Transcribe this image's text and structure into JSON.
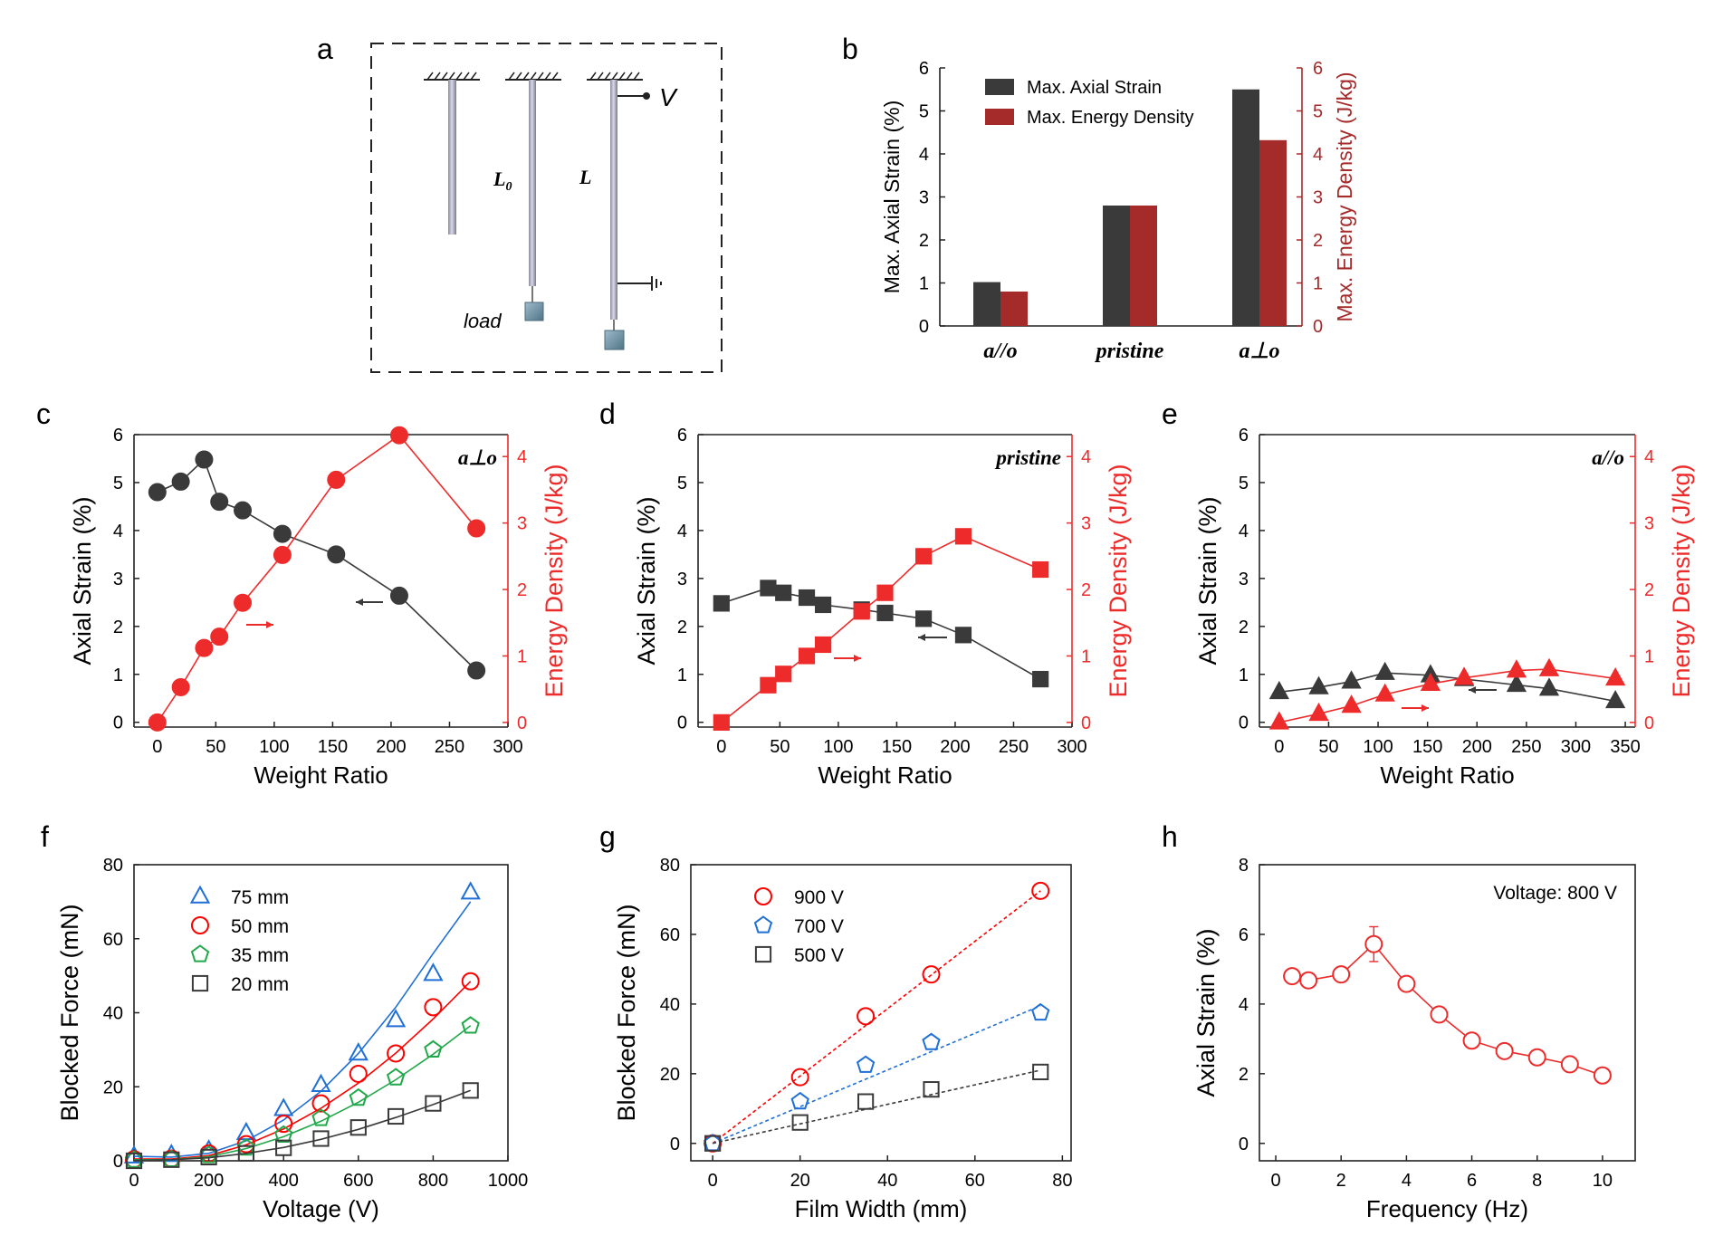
{
  "panel_letters": {
    "a": "a",
    "b": "b",
    "c": "c",
    "d": "d",
    "e": "e",
    "f": "f",
    "g": "g",
    "h": "h"
  },
  "schematic": {
    "label_L0_main": "L",
    "label_L0_sub": "0",
    "label_L": "L",
    "label_V": "V",
    "label_load": "load"
  },
  "colors": {
    "black_series": "#3a3a3a",
    "red_series": "#ee2b2b",
    "dark_red_bar": "#a52a2a",
    "blue": "#1f6fd6",
    "green": "#21a84a"
  },
  "chart_data": [
    {
      "id": "b",
      "type": "bar",
      "categories": [
        "a//o",
        "pristine",
        "a⊥o"
      ],
      "series": [
        {
          "name": "Max. Axial Strain",
          "values": [
            1.02,
            2.8,
            5.5
          ]
        },
        {
          "name": "Max. Energy Density",
          "values": [
            0.8,
            2.8,
            4.32
          ]
        }
      ],
      "ylabel": "Max. Axial Strain (%)",
      "ylabel_right": "Max. Energy Density (J/kg)",
      "ylim": [
        0,
        6
      ],
      "ylim_right": [
        0,
        6
      ],
      "yticks": [
        "0",
        "1",
        "2",
        "3",
        "4",
        "5",
        "6"
      ],
      "yticks_right": [
        "0",
        "1",
        "2",
        "3",
        "4",
        "5",
        "6"
      ],
      "legend": "top-left"
    },
    {
      "id": "c",
      "type": "line",
      "annotation": "a⊥o",
      "xlabel": "Weight Ratio",
      "ylabel": "Axial Strain (%)",
      "ylabel_right": "Energy Density (J/kg)",
      "xlim": [
        -20,
        300
      ],
      "ylim": [
        -0.1,
        6
      ],
      "ylim_right": [
        -0.07,
        4.33
      ],
      "xticks": [
        "0",
        "50",
        "100",
        "150",
        "200",
        "250",
        "300"
      ],
      "yticks": [
        "0",
        "1",
        "2",
        "3",
        "4",
        "5",
        "6"
      ],
      "yticks_right": [
        "0",
        "1",
        "2",
        "3",
        "4"
      ],
      "marker": "circle",
      "series": [
        {
          "axis": "left",
          "x": [
            0,
            20,
            40,
            53,
            73,
            107,
            153,
            207,
            273
          ],
          "y": [
            4.8,
            5.02,
            5.48,
            4.6,
            4.42,
            3.93,
            3.5,
            2.64,
            1.08
          ]
        },
        {
          "axis": "right",
          "x": [
            0,
            20,
            40,
            53,
            73,
            107,
            153,
            207,
            273
          ],
          "y": [
            0,
            0.53,
            1.12,
            1.29,
            1.8,
            2.52,
            3.65,
            4.32,
            2.92
          ]
        }
      ]
    },
    {
      "id": "d",
      "type": "line",
      "annotation": "pristine",
      "xlabel": "Weight Ratio",
      "ylabel": "Axial Strain (%)",
      "ylabel_right": "Energy Density (J/kg)",
      "xlim": [
        -20,
        300
      ],
      "ylim": [
        -0.1,
        6
      ],
      "ylim_right": [
        -0.07,
        4.33
      ],
      "xticks": [
        "0",
        "50",
        "100",
        "150",
        "200",
        "250",
        "300"
      ],
      "yticks": [
        "0",
        "1",
        "2",
        "3",
        "4",
        "5",
        "6"
      ],
      "yticks_right": [
        "0",
        "1",
        "2",
        "3",
        "4"
      ],
      "marker": "square",
      "series": [
        {
          "axis": "left",
          "x": [
            0,
            40,
            53,
            73,
            87,
            120,
            140,
            173,
            207,
            273
          ],
          "y": [
            2.48,
            2.8,
            2.7,
            2.6,
            2.45,
            2.35,
            2.28,
            2.16,
            1.82,
            0.9
          ]
        },
        {
          "axis": "right",
          "x": [
            0,
            40,
            53,
            73,
            87,
            120,
            140,
            173,
            207,
            273
          ],
          "y": [
            0,
            0.56,
            0.73,
            1.0,
            1.17,
            1.67,
            1.95,
            2.5,
            2.8,
            2.3
          ]
        }
      ]
    },
    {
      "id": "e",
      "type": "line",
      "annotation": "a//o",
      "xlabel": "Weight Ratio",
      "ylabel": "Axial Strain (%)",
      "ylabel_right": "Energy Density (J/kg)",
      "xlim": [
        -20,
        360
      ],
      "ylim": [
        -0.1,
        6
      ],
      "ylim_right": [
        -0.07,
        4.33
      ],
      "xticks": [
        "0",
        "50",
        "100",
        "150",
        "200",
        "250",
        "300",
        "350"
      ],
      "yticks": [
        "0",
        "1",
        "2",
        "3",
        "4",
        "5",
        "6"
      ],
      "yticks_right": [
        "0",
        "1",
        "2",
        "3",
        "4"
      ],
      "marker": "triangle",
      "series": [
        {
          "axis": "left",
          "x": [
            0,
            40,
            73,
            107,
            153,
            187,
            240,
            273,
            340
          ],
          "y": [
            0.63,
            0.73,
            0.85,
            1.03,
            0.98,
            0.9,
            0.78,
            0.7,
            0.44
          ]
        },
        {
          "axis": "right",
          "x": [
            0,
            40,
            73,
            107,
            153,
            187,
            240,
            273,
            340
          ],
          "y": [
            0,
            0.13,
            0.25,
            0.42,
            0.58,
            0.67,
            0.78,
            0.8,
            0.66
          ]
        }
      ]
    },
    {
      "id": "f",
      "type": "scatter",
      "xlabel": "Voltage (V)",
      "ylabel": "Blocked Force (mN)",
      "xlim": [
        0,
        1000
      ],
      "ylim": [
        0,
        80
      ],
      "xticks": [
        "0",
        "200",
        "400",
        "600",
        "800",
        "1000"
      ],
      "yticks": [
        "0",
        "20",
        "40",
        "60",
        "80"
      ],
      "legend": "top-left",
      "series": [
        {
          "name": "75 mm",
          "marker": "triangle",
          "color_key": "blue",
          "x": [
            0,
            100,
            200,
            300,
            400,
            500,
            600,
            700,
            800,
            900
          ],
          "y": [
            1.2,
            1.6,
            2.8,
            7.5,
            14,
            20.5,
            29,
            38,
            50.5,
            72.5
          ],
          "fit": [
            1.2,
            1.0,
            2.0,
            5.4,
            11.0,
            18.8,
            29.0,
            41.5,
            56.0,
            70.0
          ]
        },
        {
          "name": "50 mm",
          "marker": "circle",
          "color_key": "red",
          "x": [
            0,
            100,
            200,
            300,
            400,
            500,
            600,
            700,
            800,
            900
          ],
          "y": [
            0.4,
            0.6,
            2.0,
            4.5,
            10,
            15.5,
            23.5,
            29,
            41.5,
            48.5
          ],
          "fit": [
            0.5,
            0.5,
            1.4,
            4.3,
            8.6,
            14.2,
            21.0,
            29.1,
            38.3,
            48.5
          ]
        },
        {
          "name": "35 mm",
          "marker": "pentagon",
          "color_key": "green",
          "x": [
            0,
            100,
            200,
            300,
            400,
            500,
            600,
            700,
            800,
            900
          ],
          "y": [
            0.2,
            0.4,
            1.5,
            3.5,
            7,
            11.5,
            17,
            22.5,
            30,
            36.5
          ],
          "fit": [
            0.3,
            0.3,
            1.1,
            3.3,
            6.5,
            10.7,
            15.8,
            21.9,
            28.8,
            36.5
          ]
        },
        {
          "name": "20 mm",
          "marker": "square",
          "color_key": "black_series",
          "x": [
            0,
            100,
            200,
            300,
            400,
            500,
            600,
            700,
            800,
            900
          ],
          "y": [
            0,
            0.3,
            1.0,
            2.0,
            3.5,
            6,
            9,
            12,
            15.5,
            19
          ],
          "fit": [
            0.1,
            0.3,
            0.8,
            2.0,
            3.6,
            5.8,
            8.5,
            11.7,
            15.2,
            19.0
          ]
        }
      ]
    },
    {
      "id": "g",
      "type": "scatter",
      "xlabel": "Film Width (mm)",
      "ylabel": "Blocked Force (mN)",
      "xlim": [
        -5,
        82
      ],
      "ylim": [
        -5,
        80
      ],
      "xticks": [
        "0",
        "20",
        "40",
        "60",
        "80"
      ],
      "yticks": [
        "0",
        "20",
        "40",
        "60",
        "80"
      ],
      "legend": "top-left",
      "series": [
        {
          "name": "900 V",
          "marker": "circle",
          "color_key": "red",
          "x": [
            0,
            20,
            35,
            50,
            75
          ],
          "y": [
            0,
            19,
            36.5,
            48.5,
            72.5
          ],
          "fit": [
            0,
            72.5
          ]
        },
        {
          "name": "700 V",
          "marker": "pentagon",
          "color_key": "blue",
          "x": [
            0,
            20,
            35,
            50,
            75
          ],
          "y": [
            0,
            12,
            22.5,
            29,
            37.5
          ],
          "fit": [
            0,
            39.5
          ]
        },
        {
          "name": "500 V",
          "marker": "square",
          "color_key": "black_series",
          "x": [
            0,
            20,
            35,
            50,
            75
          ],
          "y": [
            0,
            6,
            12,
            15.5,
            20.5
          ],
          "fit": [
            0,
            21
          ]
        }
      ]
    },
    {
      "id": "h",
      "type": "line",
      "annotation": "Voltage: 800 V",
      "xlabel": "Frequency (Hz)",
      "ylabel": "Axial Strain (%)",
      "xlim": [
        -0.5,
        11
      ],
      "ylim": [
        -0.5,
        8
      ],
      "xticks": [
        "0",
        "2",
        "4",
        "6",
        "8",
        "10"
      ],
      "yticks": [
        "0",
        "2",
        "4",
        "6",
        "8"
      ],
      "marker": "circle",
      "series": [
        {
          "x": [
            0.5,
            1,
            2,
            3,
            4,
            5,
            6,
            7,
            8,
            9,
            10
          ],
          "y": [
            4.8,
            4.68,
            4.85,
            5.72,
            4.58,
            3.7,
            2.95,
            2.65,
            2.47,
            2.27,
            1.95
          ],
          "err": [
            0.1,
            0.15,
            0.15,
            0.5,
            0.15,
            0.12,
            0.1,
            0.1,
            0.1,
            0.12,
            0.1
          ]
        }
      ]
    }
  ]
}
